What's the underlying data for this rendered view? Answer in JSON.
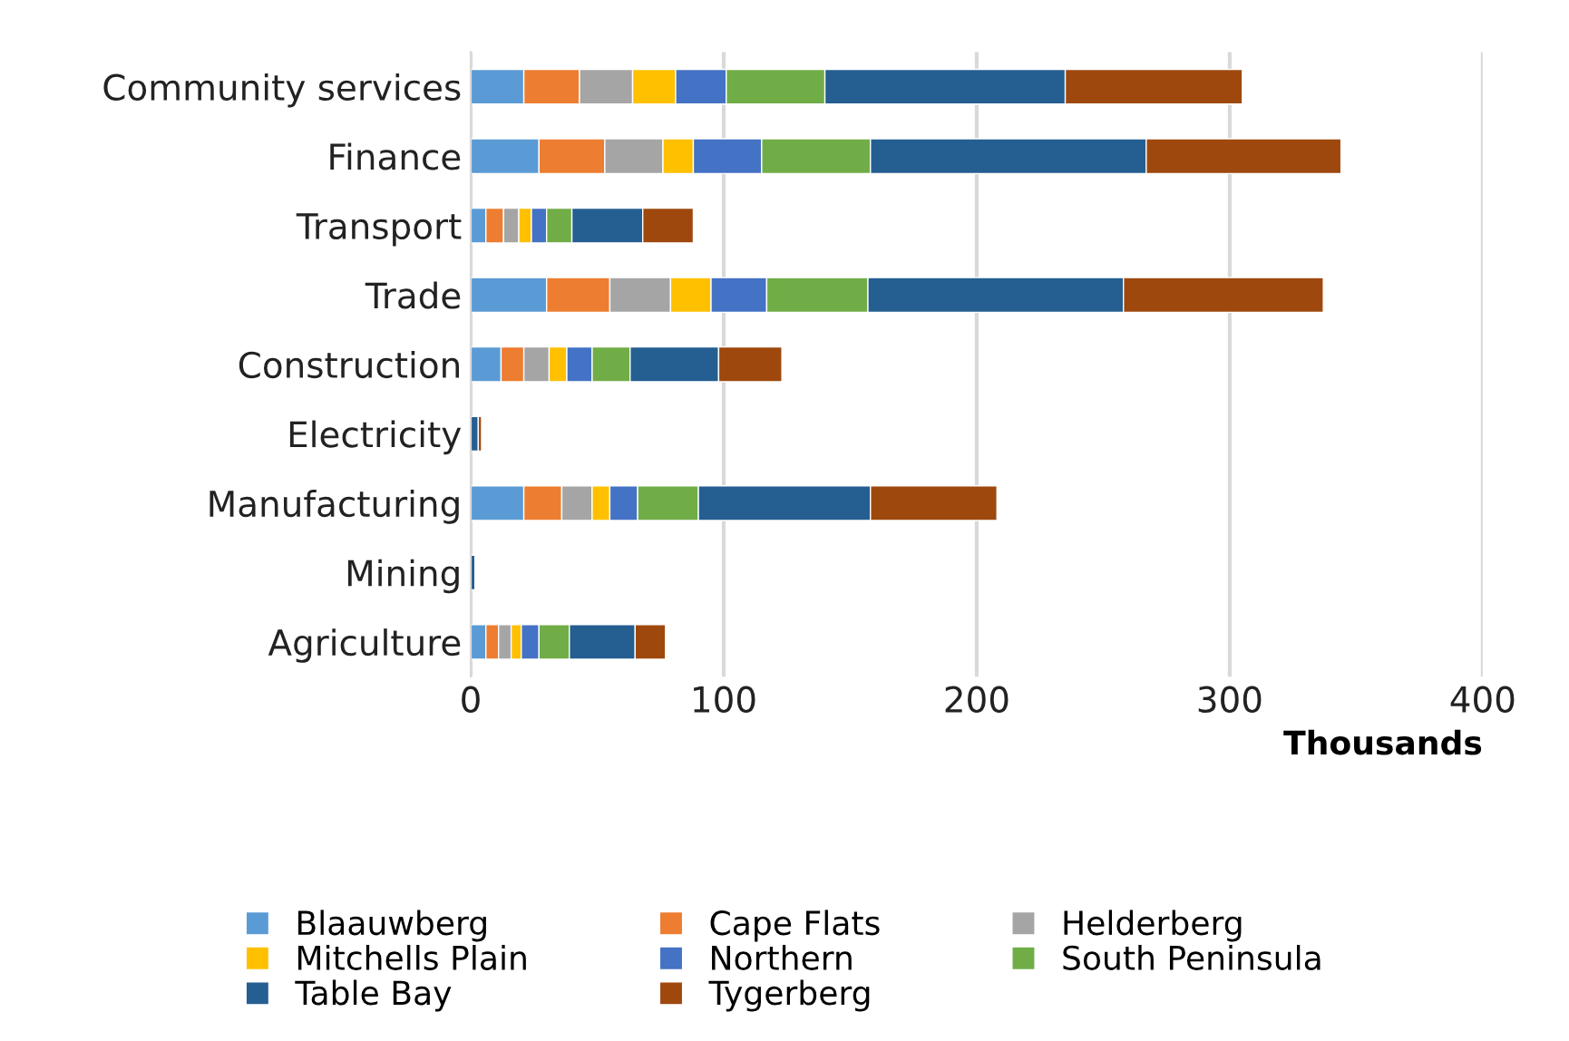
{
  "chart_data": {
    "type": "bar",
    "orientation": "horizontal",
    "stacked": true,
    "xlabel": "Thousands",
    "categories": [
      "Community services",
      "Finance",
      "Transport",
      "Trade",
      "Construction",
      "Electricity",
      "Manufacturing",
      "Mining",
      "Agriculture"
    ],
    "series": [
      {
        "name": "Blaauwberg",
        "color": "#5b9bd5",
        "values": [
          21,
          27,
          6,
          30,
          12,
          null,
          21,
          null,
          6
        ]
      },
      {
        "name": "Cape Flats",
        "color": "#ed7d31",
        "values": [
          22,
          26,
          7,
          25,
          9,
          null,
          15,
          null,
          5
        ]
      },
      {
        "name": "Helderberg",
        "color": "#a5a5a5",
        "values": [
          21,
          23,
          6,
          24,
          10,
          null,
          12,
          null,
          5
        ]
      },
      {
        "name": "Mitchells Plain",
        "color": "#ffc000",
        "values": [
          17,
          12,
          5,
          16,
          7,
          null,
          7,
          null,
          4
        ]
      },
      {
        "name": "Northern",
        "color": "#4472c4",
        "values": [
          20,
          27,
          6,
          22,
          10,
          null,
          11,
          null,
          7
        ]
      },
      {
        "name": "South Peninsula",
        "color": "#70ad47",
        "values": [
          39,
          43,
          10,
          40,
          15,
          null,
          24,
          null,
          12
        ]
      },
      {
        "name": "Table Bay",
        "color": "#255e91",
        "values": [
          95,
          109,
          28,
          101,
          35,
          3,
          68,
          1.7,
          26
        ]
      },
      {
        "name": "Tygerberg",
        "color": "#9e480e",
        "values": [
          70,
          77,
          20,
          79,
          25,
          1.3,
          50,
          null,
          12
        ]
      }
    ],
    "xlim": [
      0,
      400
    ],
    "xticks": [
      0,
      100,
      200,
      300,
      400
    ],
    "grid": "x",
    "legend": "bottom"
  }
}
